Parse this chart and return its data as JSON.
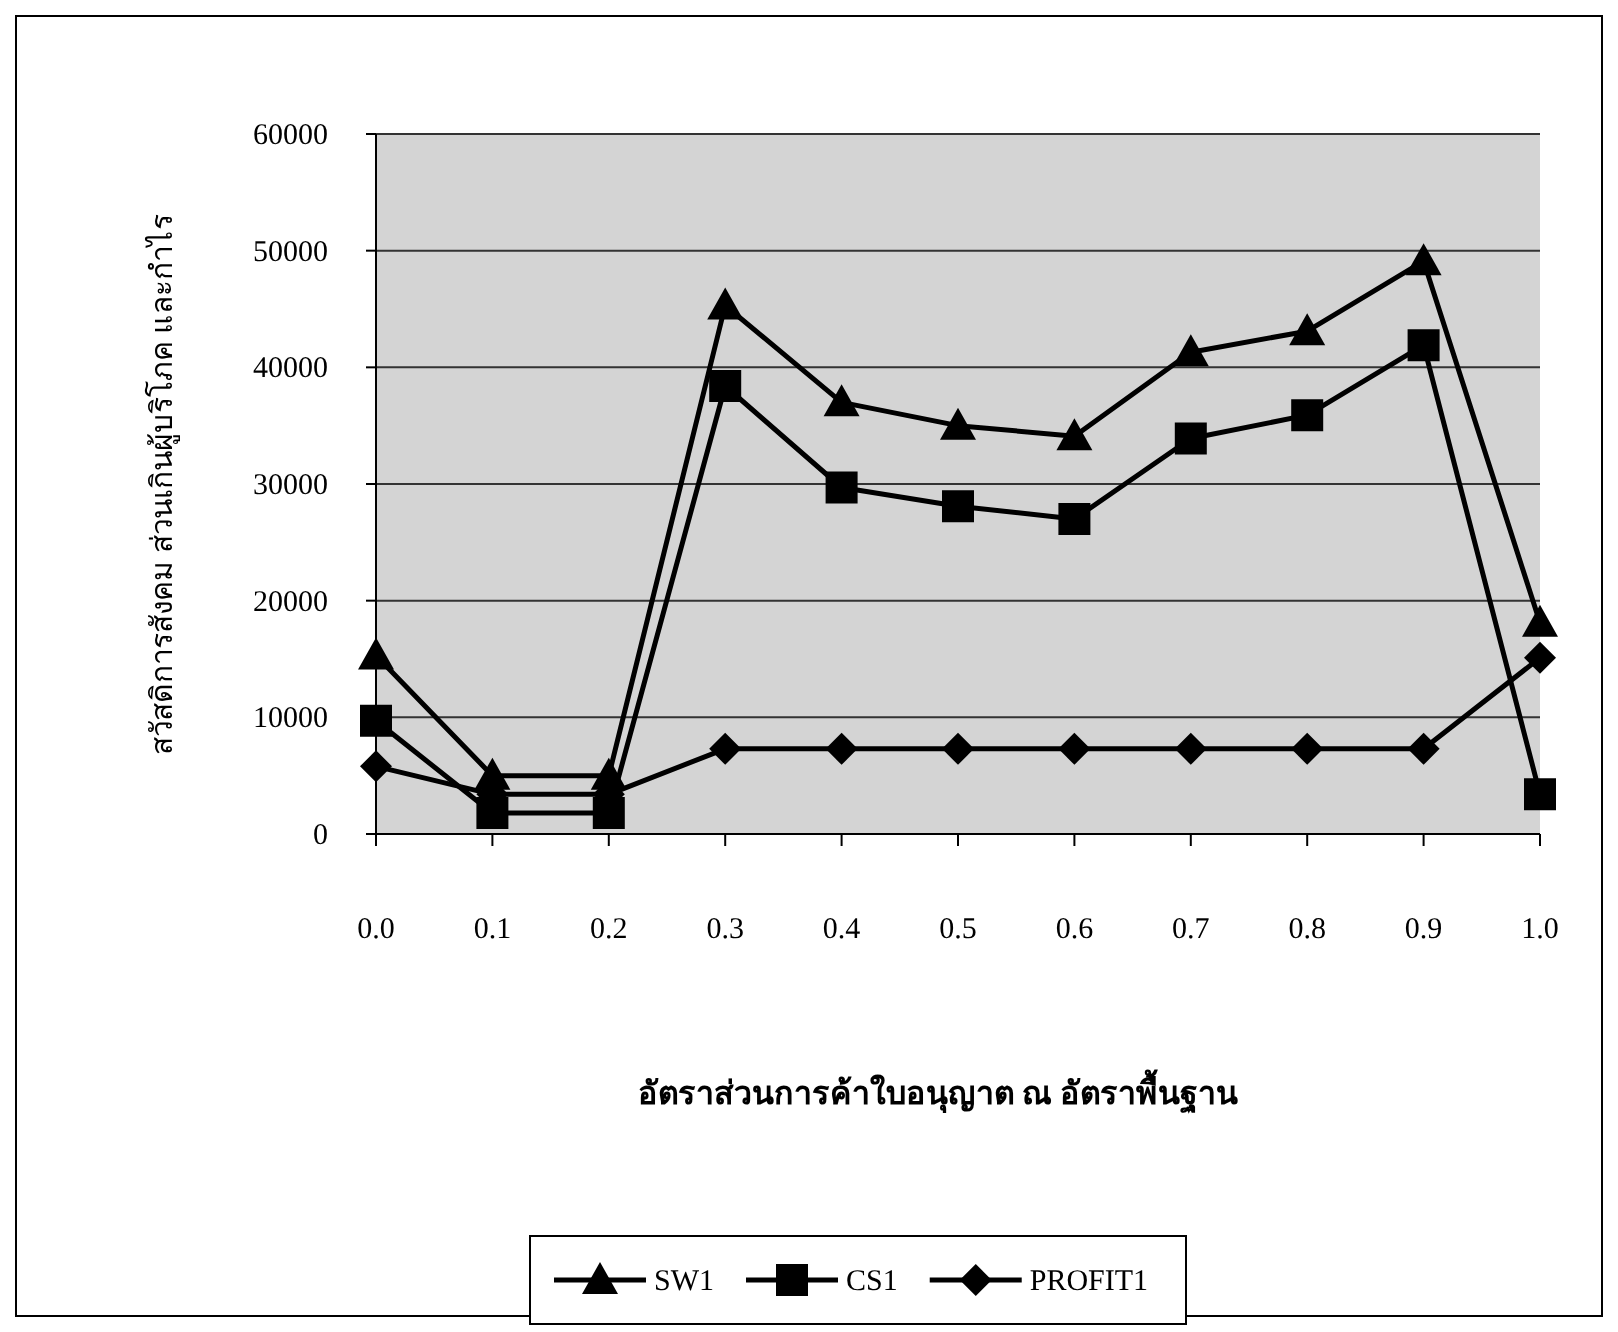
{
  "chart_data": {
    "type": "line",
    "xlabel": "อัตราส่วนการค้าใบอนุญาต ณ อัตราพื้นฐาน",
    "ylabel": "สวัสดิการสังคม ส่วนเกินผู้บริโภค และกำไร",
    "x": [
      0,
      0.1,
      0.2,
      0.3,
      0.4,
      0.5,
      0.6,
      0.7,
      0.8,
      0.9,
      1.0
    ],
    "xlim": [
      0,
      1
    ],
    "xticks": [
      {
        "value": 0,
        "label": "0.0"
      },
      {
        "value": 0.1,
        "label": "0.1"
      },
      {
        "value": 0.2,
        "label": "0.2"
      },
      {
        "value": 0.3,
        "label": "0.3"
      },
      {
        "value": 0.4,
        "label": "0.4"
      },
      {
        "value": 0.5,
        "label": "0.5"
      },
      {
        "value": 0.6,
        "label": "0.6"
      },
      {
        "value": 0.7,
        "label": "0.7"
      },
      {
        "value": 0.8,
        "label": "0.8"
      },
      {
        "value": 0.9,
        "label": "0.9"
      },
      {
        "value": 1.0,
        "label": "1.0"
      }
    ],
    "ylim": [
      0,
      60000
    ],
    "yticks": [
      0,
      10000,
      20000,
      30000,
      40000,
      50000,
      60000
    ],
    "grid": "y",
    "legend": "bottom",
    "line_style": "solid",
    "series": [
      {
        "name": "SW1",
        "color": "#000000",
        "marker": "triangle",
        "values": [
          15300,
          5000,
          5000,
          45300,
          37000,
          35000,
          34100,
          41300,
          43100,
          49100,
          18100
        ]
      },
      {
        "name": "CS1",
        "color": "#000000",
        "marker": "square",
        "values": [
          9700,
          1800,
          1800,
          38400,
          29700,
          28100,
          27000,
          33900,
          35900,
          41900,
          3400
        ]
      },
      {
        "name": "PROFIT1",
        "color": "#000000",
        "marker": "diamond",
        "values": [
          5800,
          3400,
          3400,
          7300,
          7300,
          7300,
          7300,
          7300,
          7300,
          7300,
          15100
        ]
      }
    ]
  }
}
